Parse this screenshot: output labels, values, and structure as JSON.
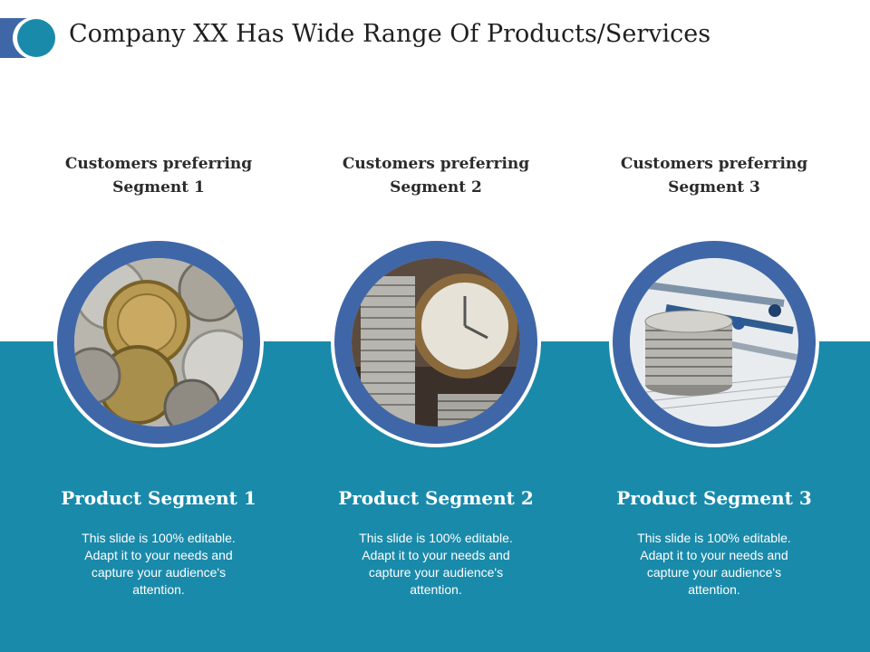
{
  "slide": {
    "title": "Company XX Has Wide Range Of Products/Services",
    "colors": {
      "band": "#1a8aaa",
      "ring": "#3f67a8",
      "logo_bar": "#3f67a8",
      "logo_disc": "#1a8aaa"
    }
  },
  "segments": [
    {
      "heading": "Customers preferring\nSegment 1",
      "image_icon": "coins-photo",
      "product_title": "Product Segment 1",
      "description": "This slide is 100% editable. Adapt it to your needs and capture your audience's attention."
    },
    {
      "heading": "Customers preferring\nSegment  2",
      "image_icon": "coin-stack-clock-photo",
      "product_title": "Product Segment 2",
      "description": "This slide is 100% editable. Adapt it to your needs and capture your audience's attention."
    },
    {
      "heading": "Customers preferring\nSegment 3",
      "image_icon": "coins-pens-photo",
      "product_title": "Product Segment 3",
      "description": "This slide is 100% editable. Adapt it to your needs and capture your audience's attention."
    }
  ]
}
